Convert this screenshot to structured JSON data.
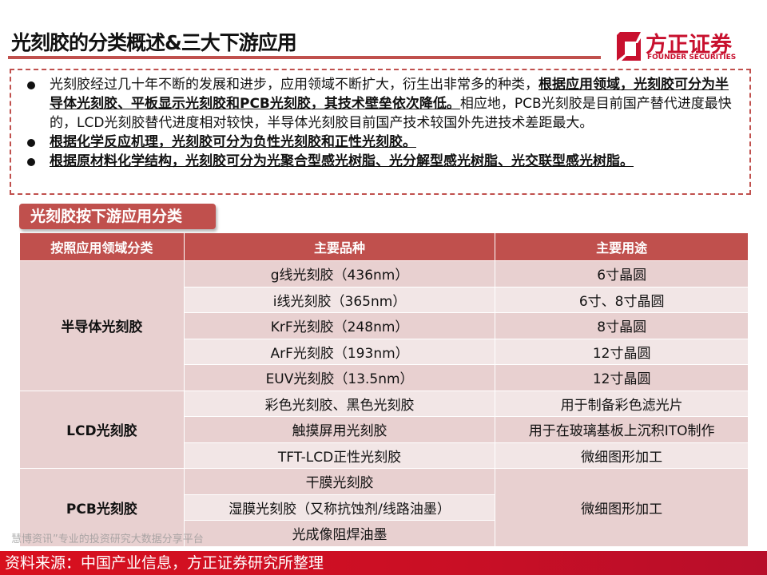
{
  "header": {
    "title": "光刻胶的分类概述&三大下游应用"
  },
  "logo": {
    "cn": "方正证券",
    "en": "FOUNDER SECURITIES",
    "color": "#C8102E"
  },
  "intro": {
    "b1_plain1": "光刻胶经过几十年不断的发展和进步，应用领域不断扩大，衍生出非常多的种类，",
    "b1_bold": "根据应用领域，光刻胶可分为半导体光刻胶、平板显示光刻胶和PCB光刻胶，其技术壁垒依次降低。",
    "b1_plain2": "相应地，PCB光刻胶是目前国产替代进度最快的，LCD光刻胶替代进度相对较快，半导体光刻胶目前国产技术较国外先进技术差距最大。",
    "b2": "根据化学反应机理，光刻胶可分为负性光刻胶和正性光刻胶。",
    "b3": "根据原材料化学结构，光刻胶可分为光聚合型感光树脂、光分解型感光树脂、光交联型感光树脂。"
  },
  "subheading": "光刻胶按下游应用分类",
  "table": {
    "headers": [
      "按照应用领域分类",
      "主要品种",
      "主要用途"
    ],
    "groups": [
      "半导体光刻胶",
      "LCD光刻胶",
      "PCB光刻胶"
    ],
    "rows": [
      {
        "variety": "g线光刻胶（436nm）",
        "use": "6寸晶圆"
      },
      {
        "variety": "i线光刻胶（365nm）",
        "use": "6寸、8寸晶圆"
      },
      {
        "variety": "KrF光刻胶（248nm）",
        "use": "8寸晶圆"
      },
      {
        "variety": "ArF光刻胶（193nm）",
        "use": "12寸晶圆"
      },
      {
        "variety": "EUV光刻胶（13.5nm）",
        "use": "12寸晶圆"
      },
      {
        "variety": "彩色光刻胶、黑色光刻胶",
        "use": "用于制备彩色滤光片"
      },
      {
        "variety": "触摸屏用光刻胶",
        "use": "用于在玻璃基板上沉积ITO制作"
      },
      {
        "variety": "TFT-LCD正性光刻胶",
        "use": "微细图形加工"
      },
      {
        "variety": "干膜光刻胶"
      },
      {
        "variety": "湿膜光刻胶（又称抗蚀剂/线路油墨）"
      },
      {
        "variety": "光成像阻焊油墨"
      }
    ],
    "pcb_use": "微细图形加工"
  },
  "watermark": "慧博资讯”专业的投资研究大数据分享平台",
  "footer": {
    "source": "资料来源：中国产业信息，方正证券研究所整理"
  },
  "colors": {
    "accent": "#C0504D",
    "row_dark": "#E8D0D0",
    "row_light": "#F2E6E6",
    "footer": "#D8101E"
  }
}
